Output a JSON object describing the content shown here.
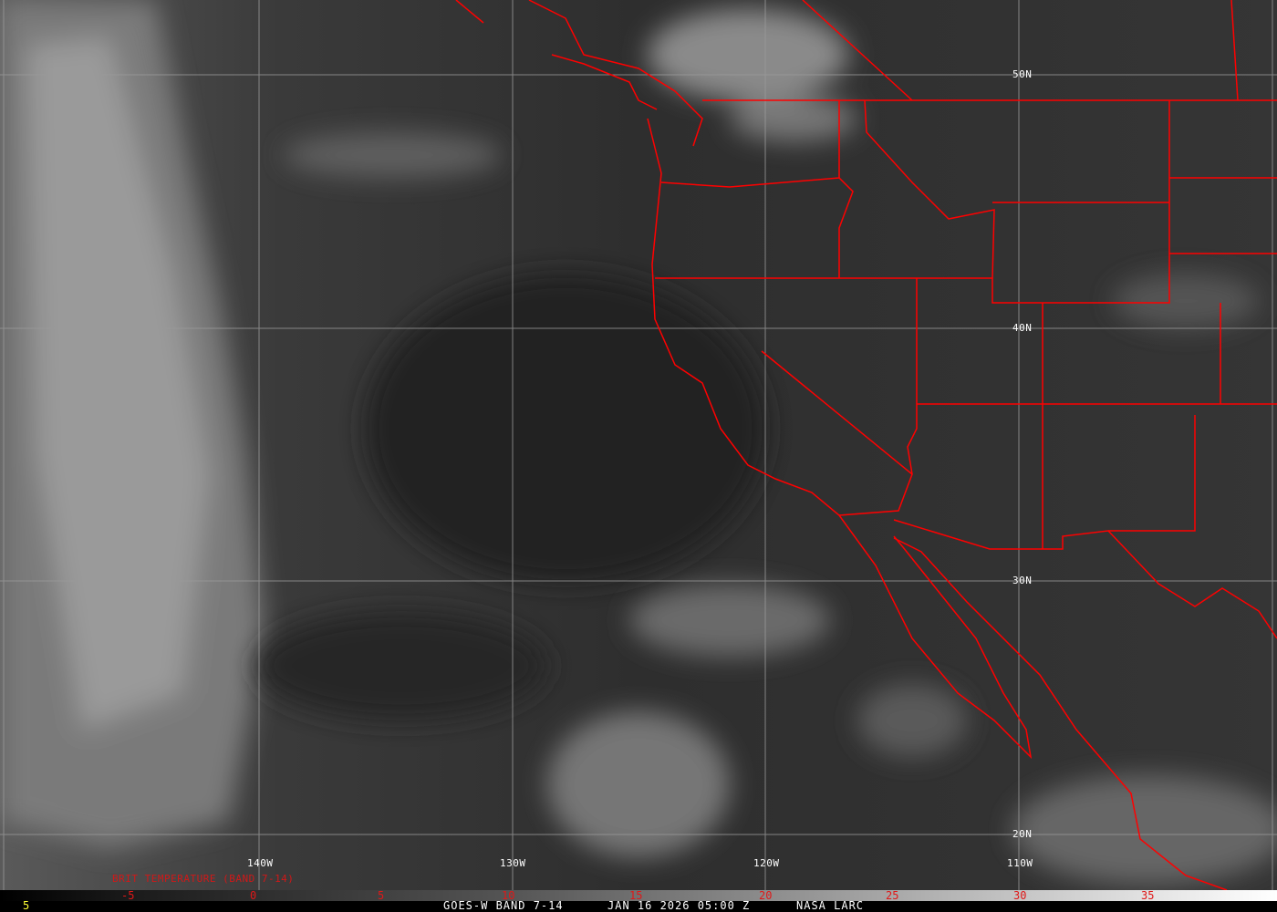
{
  "map": {
    "grid_labels": {
      "lon": [
        "140W",
        "130W",
        "120W",
        "110W"
      ],
      "lat": [
        "50N",
        "40N",
        "30N",
        "20N"
      ]
    },
    "colorbar": {
      "title": "BRIT TEMPERATURE (BAND 7-14)",
      "ticks": [
        "-5",
        "0",
        "5",
        "10",
        "15",
        "20",
        "25",
        "30",
        "35"
      ],
      "tick_color": "#e01818"
    },
    "footer": {
      "frame": "5",
      "satellite": "GOES-W BAND 7-14",
      "datetime": "JAN 16 2026 05:00 Z",
      "source": "NASA LARC"
    },
    "colors": {
      "borders": "#ff0000",
      "grid": "#9a9a9a",
      "frame": "#ffff33"
    }
  }
}
